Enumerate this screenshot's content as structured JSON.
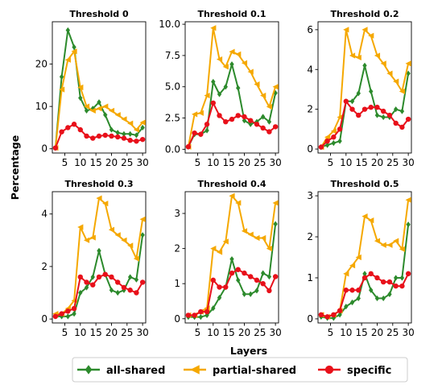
{
  "chart_data": {
    "type": "line",
    "ylabel": "Percentage",
    "xlabel": "Layers",
    "legend": {
      "placement": "bottom",
      "entries": [
        "all-shared",
        "partial-shared",
        "specific"
      ]
    },
    "colors": {
      "all-shared": "#2c8a2c",
      "partial-shared": "#f5a800",
      "specific": "#e8101a"
    },
    "markers": {
      "all-shared": "diamond",
      "partial-shared": "left-triangle",
      "specific": "circle"
    },
    "x": [
      2,
      4,
      6,
      8,
      10,
      12,
      14,
      16,
      18,
      20,
      22,
      24,
      26,
      28,
      30
    ],
    "xticks": [
      5,
      10,
      15,
      20,
      25,
      30
    ],
    "xlim": [
      1,
      31
    ],
    "grid": false,
    "panels": [
      {
        "title": "Threshold 0",
        "ylim": [
          -1,
          30
        ],
        "yticks": [
          0,
          10,
          20
        ],
        "series": [
          {
            "name": "all-shared",
            "values": [
              0.2,
              17.0,
              28.0,
              24.0,
              12.0,
              9.0,
              9.5,
              11.0,
              8.0,
              4.5,
              3.8,
              3.5,
              3.5,
              3.2,
              5.0
            ]
          },
          {
            "name": "partial-shared",
            "values": [
              0.2,
              14.0,
              21.0,
              23.0,
              14.5,
              10.0,
              9.0,
              9.5,
              10.0,
              9.0,
              8.0,
              7.0,
              6.0,
              4.5,
              6.2
            ]
          },
          {
            "name": "specific",
            "values": [
              0.2,
              4.0,
              5.0,
              5.8,
              4.5,
              3.0,
              2.5,
              3.0,
              3.2,
              3.0,
              2.8,
              2.5,
              2.0,
              1.8,
              2.2
            ]
          }
        ]
      },
      {
        "title": "Threshold 0.1",
        "ylim": [
          -0.3,
          10.2
        ],
        "yticks": [
          0.0,
          2.5,
          5.0,
          7.5,
          10.0
        ],
        "ytick_labels": [
          "0.0",
          "2.5",
          "5.0",
          "7.5",
          "10.0"
        ],
        "series": [
          {
            "name": "all-shared",
            "values": [
              0.2,
              1.2,
              1.2,
              1.5,
              5.4,
              4.4,
              5.0,
              6.8,
              4.9,
              2.3,
              2.0,
              2.2,
              2.6,
              2.2,
              4.5
            ]
          },
          {
            "name": "partial-shared",
            "values": [
              0.2,
              2.8,
              2.9,
              4.3,
              9.7,
              7.2,
              6.6,
              7.8,
              7.6,
              6.9,
              6.2,
              5.2,
              4.3,
              3.4,
              5.0
            ]
          },
          {
            "name": "specific",
            "values": [
              0.2,
              1.3,
              1.2,
              2.0,
              3.7,
              2.7,
              2.2,
              2.4,
              2.7,
              2.6,
              2.3,
              2.0,
              1.7,
              1.4,
              1.8
            ]
          }
        ]
      },
      {
        "title": "Threshold 0.2",
        "ylim": [
          -0.2,
          6.4
        ],
        "yticks": [
          0,
          2,
          4,
          6
        ],
        "series": [
          {
            "name": "all-shared",
            "values": [
              0.1,
              0.2,
              0.3,
              0.4,
              2.4,
              2.4,
              2.8,
              4.2,
              2.9,
              1.7,
              1.6,
              1.6,
              2.0,
              1.9,
              3.8
            ]
          },
          {
            "name": "partial-shared",
            "values": [
              0.1,
              0.6,
              0.9,
              1.6,
              6.0,
              4.7,
              4.6,
              6.0,
              5.7,
              4.7,
              4.3,
              3.8,
              3.4,
              2.9,
              4.3
            ]
          },
          {
            "name": "specific",
            "values": [
              0.1,
              0.4,
              0.6,
              1.0,
              2.4,
              2.0,
              1.7,
              2.0,
              2.1,
              2.1,
              1.9,
              1.7,
              1.3,
              1.1,
              1.5
            ]
          }
        ]
      },
      {
        "title": "Threshold 0.3",
        "ylim": [
          -0.15,
          4.85
        ],
        "yticks": [
          0,
          2,
          4
        ],
        "series": [
          {
            "name": "all-shared",
            "values": [
              0.1,
              0.1,
              0.1,
              0.2,
              1.0,
              1.2,
              1.6,
              2.6,
              1.7,
              1.1,
              1.0,
              1.1,
              1.6,
              1.5,
              3.2
            ]
          },
          {
            "name": "partial-shared",
            "values": [
              0.2,
              0.2,
              0.4,
              0.7,
              3.5,
              3.0,
              3.1,
              4.6,
              4.4,
              3.4,
              3.2,
              3.0,
              2.8,
              2.3,
              3.8
            ]
          },
          {
            "name": "specific",
            "values": [
              0.1,
              0.2,
              0.3,
              0.4,
              1.6,
              1.4,
              1.3,
              1.6,
              1.7,
              1.6,
              1.4,
              1.2,
              1.1,
              1.0,
              1.4
            ]
          }
        ]
      },
      {
        "title": "Threshold 0.4",
        "ylim": [
          -0.12,
          3.62
        ],
        "yticks": [
          0,
          1,
          2,
          3
        ],
        "series": [
          {
            "name": "all-shared",
            "values": [
              0.05,
              0.05,
              0.05,
              0.1,
              0.3,
              0.6,
              0.9,
              1.7,
              1.1,
              0.7,
              0.7,
              0.8,
              1.3,
              1.2,
              2.7
            ]
          },
          {
            "name": "partial-shared",
            "values": [
              0.1,
              0.1,
              0.2,
              0.3,
              2.0,
              1.9,
              2.2,
              3.5,
              3.3,
              2.5,
              2.4,
              2.3,
              2.3,
              2.0,
              3.3
            ]
          },
          {
            "name": "specific",
            "values": [
              0.1,
              0.1,
              0.2,
              0.2,
              1.1,
              0.9,
              0.9,
              1.3,
              1.4,
              1.3,
              1.2,
              1.1,
              1.0,
              0.8,
              1.2
            ]
          }
        ]
      },
      {
        "title": "Threshold 0.5",
        "ylim": [
          -0.1,
          3.1
        ],
        "yticks": [
          0,
          1,
          2,
          3
        ],
        "series": [
          {
            "name": "all-shared",
            "values": [
              0.05,
              0.02,
              0.02,
              0.1,
              0.3,
              0.4,
              0.5,
              1.1,
              0.7,
              0.5,
              0.5,
              0.6,
              1.0,
              1.0,
              2.3
            ]
          },
          {
            "name": "partial-shared",
            "values": [
              0.1,
              0.05,
              0.1,
              0.2,
              1.1,
              1.3,
              1.5,
              2.5,
              2.4,
              1.9,
              1.8,
              1.8,
              1.9,
              1.7,
              2.9
            ]
          },
          {
            "name": "specific",
            "values": [
              0.1,
              0.05,
              0.1,
              0.2,
              0.7,
              0.7,
              0.7,
              1.0,
              1.1,
              1.0,
              0.9,
              0.9,
              0.8,
              0.8,
              1.1
            ]
          }
        ]
      }
    ]
  }
}
